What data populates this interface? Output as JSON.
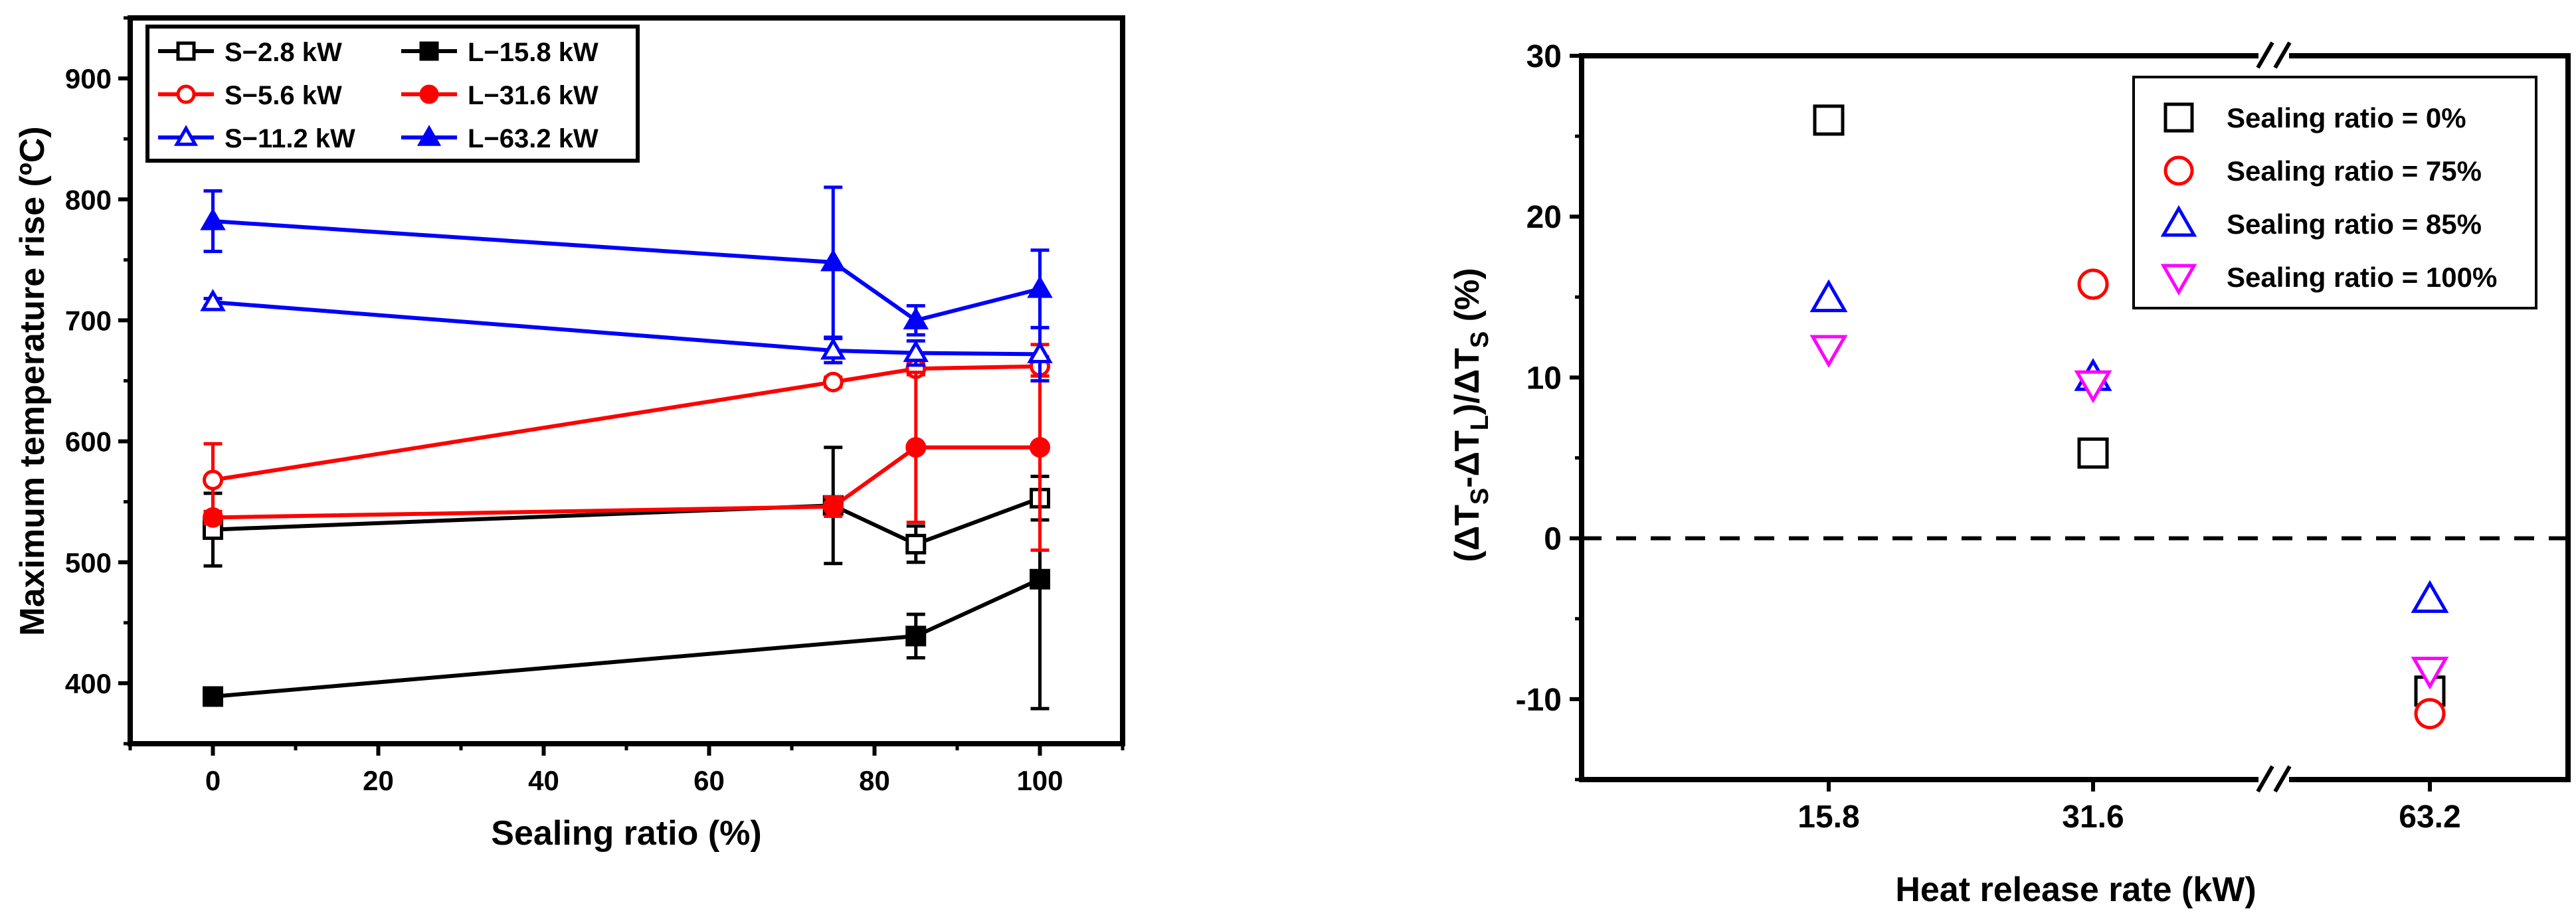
{
  "chart_data": [
    {
      "type": "line",
      "xlabel": "Sealing ratio (%)",
      "ylabel": "Maximum temperature rise (ºC)",
      "xlim": [
        -10,
        110
      ],
      "ylim": [
        350,
        950
      ],
      "xticks": [
        0,
        20,
        40,
        60,
        80,
        100
      ],
      "yticks": [
        400,
        500,
        600,
        700,
        800,
        900
      ],
      "legend_position": "top-left",
      "x": [
        0,
        75,
        85,
        100
      ],
      "series": [
        {
          "name": "S−2.8 kW",
          "color": "#000000",
          "marker": "square",
          "filled": false,
          "values": [
            527,
            547,
            515,
            553
          ],
          "errors": [
            30,
            48,
            15,
            18
          ]
        },
        {
          "name": "L−15.8 kW",
          "color": "#000000",
          "marker": "square",
          "filled": true,
          "values": [
            389,
            null,
            439,
            486
          ],
          "errors": [
            7,
            null,
            18,
            107
          ]
        },
        {
          "name": "S−5.6 kW",
          "color": "#ff0000",
          "marker": "circle",
          "filled": false,
          "values": [
            568,
            649,
            660,
            662
          ],
          "errors": [
            30,
            4,
            5,
            8
          ]
        },
        {
          "name": "L−31.6 kW",
          "color": "#ff0000",
          "marker": "circle",
          "filled": true,
          "values": [
            537,
            546,
            595,
            595
          ],
          "errors": [
            5,
            8,
            62,
            85
          ]
        },
        {
          "name": "S−11.2 kW",
          "color": "#0000ff",
          "marker": "triangle",
          "filled": false,
          "values": [
            715,
            675,
            673,
            672
          ],
          "errors": [
            3,
            10,
            10,
            22
          ]
        },
        {
          "name": "L−63.2 kW",
          "color": "#0000ff",
          "marker": "triangle",
          "filled": true,
          "values": [
            782,
            748,
            700,
            726
          ],
          "errors": [
            25,
            62,
            12,
            32
          ]
        }
      ]
    },
    {
      "type": "scatter",
      "xlabel": "Heat release rate (kW)",
      "ylabel_parts": [
        "(ΔT",
        "S",
        "-ΔT",
        "L",
        ")/ΔT",
        "S",
        " (%)"
      ],
      "categories": [
        "15.8",
        "31.6",
        "63.2"
      ],
      "ylim": [
        -15,
        30
      ],
      "yticks": [
        -10,
        0,
        10,
        20,
        30
      ],
      "axis_break": "between 31.6 and 63.2",
      "reference_line": 0,
      "legend_position": "top-right",
      "series": [
        {
          "name": "Sealing ratio = 0%",
          "color": "#000000",
          "marker": "square",
          "values": [
            26,
            5.3,
            -9.5
          ]
        },
        {
          "name": "Sealing ratio = 75%",
          "color": "#ff0000",
          "marker": "circle",
          "values": [
            null,
            15.8,
            -10.9
          ]
        },
        {
          "name": "Sealing ratio = 85%",
          "color": "#0000ff",
          "marker": "triangle",
          "values": [
            14.9,
            10,
            -3.8
          ]
        },
        {
          "name": "Sealing ratio = 100%",
          "color": "#ff00ff",
          "marker": "triangle-down",
          "values": [
            11.8,
            9.6,
            -8.2
          ]
        }
      ]
    }
  ]
}
